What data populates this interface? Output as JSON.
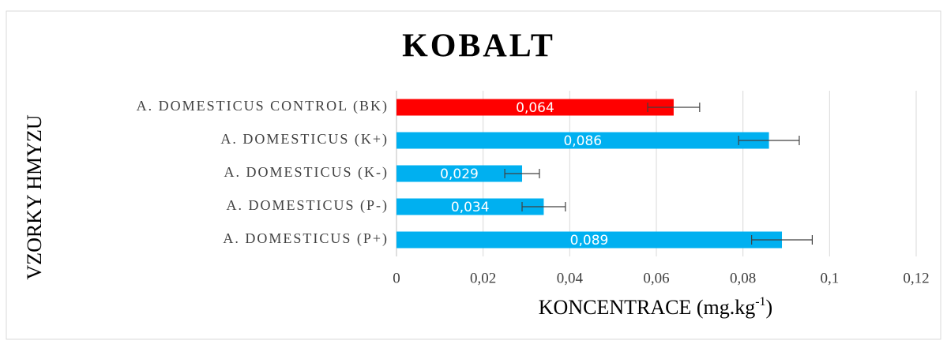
{
  "chart_data": {
    "type": "bar",
    "orientation": "horizontal",
    "title": "KOBALT",
    "ylabel": "VZORKY HMYZU",
    "xlabel": {
      "text": "KONCENTRACE (mg.kg",
      "superscript": "-1",
      "suffix": ")"
    },
    "categories": [
      "A. DOMESTICUS CONTROL (BK)",
      "A. DOMESTICUS (K+)",
      "A. DOMESTICUS (K-)",
      "A. DOMESTICUS (P-)",
      "A. DOMESTICUS (P+)"
    ],
    "values": [
      0.064,
      0.086,
      0.029,
      0.034,
      0.089
    ],
    "value_labels": [
      "0,064",
      "0,086",
      "0,029",
      "0,034",
      "0,089"
    ],
    "errors": [
      0.006,
      0.007,
      0.004,
      0.005,
      0.007
    ],
    "colors": [
      "#ff0000",
      "#00b0f0",
      "#00b0f0",
      "#00b0f0",
      "#00b0f0"
    ],
    "xlim": [
      0,
      0.12
    ],
    "xticks": [
      0,
      {
        "value": 0.02,
        "label": "0,02"
      },
      {
        "value": 0.04,
        "label": "0,04"
      },
      {
        "value": 0.06,
        "label": "0,06"
      },
      {
        "value": 0.08,
        "label": "0,08"
      },
      {
        "value": 0.1,
        "label": "0,1"
      },
      {
        "value": 0.12,
        "label": "0,12"
      }
    ],
    "grid": true
  }
}
